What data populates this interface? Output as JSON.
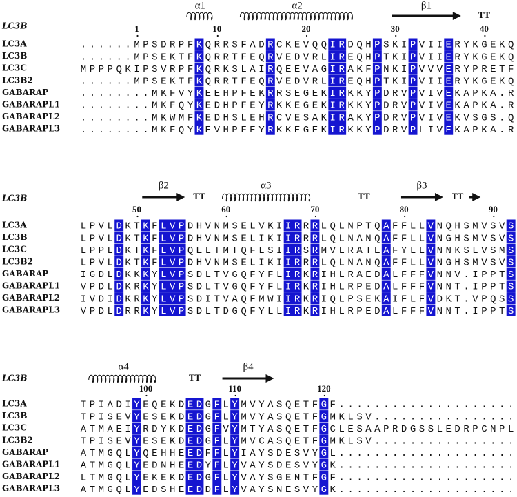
{
  "blocks": [
    {
      "reference": "LC3B",
      "structure": [
        "α1",
        "α2",
        "β1",
        "TT"
      ],
      "numbers": [
        1,
        10,
        20,
        30,
        40
      ],
      "rows": [
        {
          "name": "LC3A",
          "segments": [
            "......MPSDRPF",
            "K",
            "QRRSFAD",
            "R",
            "CKEVQQ",
            "IR",
            "DQH",
            "P",
            "SKI",
            "P",
            "VII",
            "E",
            "RYKGEKQ"
          ]
        },
        {
          "name": "LC3B",
          "segments": [
            "......MPSEKTF",
            "K",
            "QRRTFEQ",
            "R",
            "VEDVRL",
            "IR",
            "EQH",
            "P",
            "TKI",
            "P",
            "VII",
            "E",
            "RYKGEKQ"
          ]
        },
        {
          "name": "LC3C",
          "segments": [
            "MPPPQKIPSVRPF",
            "K",
            "QRKSLAI",
            "R",
            "QEEVAG",
            "IR",
            "AKF",
            "P",
            "NKI",
            "P",
            "VVV",
            "E",
            "RYPRETF"
          ]
        },
        {
          "name": "LC3B2",
          "segments": [
            "......MPSEKTF",
            "K",
            "QRRTFEQ",
            "R",
            "VEDVRL",
            "IR",
            "EQH",
            "P",
            "TKI",
            "P",
            "VII",
            "E",
            "RYKGEKQ"
          ]
        },
        {
          "name": "GABARAP",
          "segments": [
            "........MKFVY",
            "K",
            "EEHPFEK",
            "R",
            "RSEGEK",
            "IR",
            "KKY",
            "P",
            "DRV",
            "P",
            "VIV",
            "E",
            "KAPKA.R"
          ]
        },
        {
          "name": "GABARAPL1",
          "segments": [
            "........MKFQY",
            "K",
            "EDHPFEY",
            "R",
            "KKEGEK",
            "IR",
            "KKY",
            "P",
            "DRV",
            "P",
            "VIV",
            "E",
            "KAPKA.R"
          ]
        },
        {
          "name": "GABARAPL2",
          "segments": [
            "........MKWMF",
            "K",
            "EDHSLEH",
            "R",
            "CVESAK",
            "IR",
            "AKY",
            "P",
            "DRV",
            "P",
            "VIV",
            "E",
            "KVSGS.Q"
          ]
        },
        {
          "name": "GABARAPL3",
          "segments": [
            "........MKFQY",
            "K",
            "EVHPFEY",
            "R",
            "KKEGEK",
            "IR",
            "KKY",
            "P",
            "DRV",
            "P",
            "LIV",
            "E",
            "KAPKA.R"
          ]
        }
      ]
    },
    {
      "reference": "LC3B",
      "structure": [
        "β2",
        "TT",
        "α3",
        "TT",
        "β3",
        "TT"
      ],
      "numbers": [
        50,
        60,
        70,
        80,
        90
      ],
      "rows": [
        {
          "name": "LC3A",
          "segments": [
            "LPVL",
            "D",
            "KT",
            "K",
            "F",
            "LVP",
            "DHVNMSELVKI",
            "IR",
            "R",
            "R",
            "LQLNPTQ",
            "A",
            "FFLL",
            "V",
            "NQHSMVSV",
            "S"
          ]
        },
        {
          "name": "LC3B",
          "segments": [
            "LPVL",
            "D",
            "KT",
            "K",
            "F",
            "LVP",
            "DHVNMSELIKI",
            "IR",
            "R",
            "R",
            "LQLNANQ",
            "A",
            "FFLL",
            "V",
            "NGHSMVSV",
            "S"
          ]
        },
        {
          "name": "LC3C",
          "segments": [
            "LPPL",
            "D",
            "KT",
            "K",
            "F",
            "LVP",
            "QELTMTQFLSI",
            "IR",
            "S",
            "R",
            "MVLRATE",
            "A",
            "FYLL",
            "V",
            "NNKSLVSM",
            "S"
          ]
        },
        {
          "name": "LC3B2",
          "segments": [
            "LPVL",
            "D",
            "KT",
            "K",
            "F",
            "LVP",
            "DHVNMSELIKI",
            "IR",
            "R",
            "R",
            "LQLNANQ",
            "A",
            "FFLL",
            "V",
            "NGHSMVSV",
            "S"
          ]
        },
        {
          "name": "GABARAP",
          "segments": [
            "IGDL",
            "D",
            "KK",
            "K",
            "Y",
            "LVP",
            "SDLTVGQFYFL",
            "IR",
            "K",
            "R",
            "IHLRAED",
            "A",
            "LFFF",
            "V",
            "NNV.IPPT",
            "S"
          ]
        },
        {
          "name": "GABARAPL1",
          "segments": [
            "VPDL",
            "D",
            "KR",
            "K",
            "Y",
            "LVP",
            "SDLTVGQFYFL",
            "IR",
            "K",
            "R",
            "IHLRPED",
            "A",
            "LFFF",
            "V",
            "NNT.IPPT",
            "S"
          ]
        },
        {
          "name": "GABARAPL2",
          "segments": [
            "IVDI",
            "D",
            "KR",
            "K",
            "Y",
            "LVP",
            "SDITVAQFMWI",
            "IR",
            "K",
            "R",
            "IQLPSEK",
            "A",
            "IFLF",
            "V",
            "DKT.VPQS",
            "S"
          ]
        },
        {
          "name": "GABARAPL3",
          "segments": [
            "VPDL",
            "D",
            "RR",
            "K",
            "Y",
            "LVP",
            "SDLTDGQFYLL",
            "IR",
            "K",
            "R",
            "IHLRPED",
            "A",
            "LFFF",
            "V",
            "NNT.IPPT",
            "S"
          ]
        }
      ]
    },
    {
      "reference": "LC3B",
      "structure": [
        "α4",
        "TT",
        "β4"
      ],
      "numbers": [
        100,
        110,
        120
      ],
      "rows": [
        {
          "name": "LC3A",
          "segments": [
            "TPIADI",
            "Y",
            "EQEKD",
            "ED",
            "G",
            "F",
            "L",
            "Y",
            "MVYASQETF",
            "G",
            "F...................."
          ]
        },
        {
          "name": "LC3B",
          "segments": [
            "TPISEV",
            "Y",
            "ESEKD",
            "ED",
            "G",
            "F",
            "L",
            "Y",
            "MVYASQETF",
            "G",
            "MKLSV................"
          ]
        },
        {
          "name": "LC3C",
          "segments": [
            "ATMAEI",
            "Y",
            "RDYKD",
            "ED",
            "G",
            "F",
            "V",
            "Y",
            "MTYASQETF",
            "G",
            "CLESAAPRDGSSLEDRPCNPL"
          ]
        },
        {
          "name": "LC3B2",
          "segments": [
            "TPISEV",
            "Y",
            "ESEKD",
            "ED",
            "G",
            "F",
            "L",
            "Y",
            "MVCASQETF",
            "G",
            "MKLSV................"
          ]
        },
        {
          "name": "GABARAP",
          "segments": [
            "ATMGQL",
            "Y",
            "QEHHE",
            "ED",
            "F",
            "F",
            "L",
            "Y",
            "IAYSDESVY",
            "G",
            "L...................."
          ]
        },
        {
          "name": "GABARAPL1",
          "segments": [
            "ATMGQL",
            "Y",
            "EDNHE",
            "ED",
            "Y",
            "F",
            "L",
            "Y",
            "VAYSDESVY",
            "G",
            "K...................."
          ]
        },
        {
          "name": "GABARAPL2",
          "segments": [
            "LTMGQL",
            "Y",
            "EKEKD",
            "ED",
            "G",
            "F",
            "L",
            "Y",
            "VAYSGENTF",
            "G",
            "F...................."
          ]
        },
        {
          "name": "GABARAPL3",
          "segments": [
            "ATMGQL",
            "Y",
            "EDSHE",
            "ED",
            "D",
            "F",
            "L",
            "Y",
            "VAYSNESVY",
            "G",
            "K...................."
          ]
        }
      ]
    }
  ]
}
